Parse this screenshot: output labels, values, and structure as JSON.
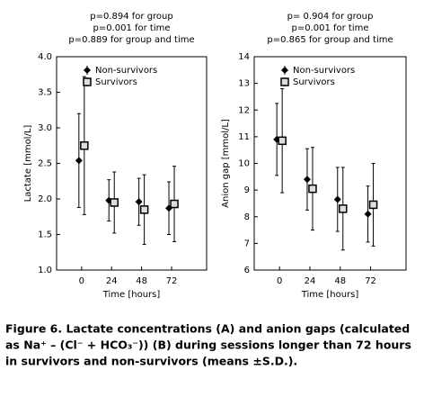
{
  "chart_data": [
    {
      "type": "errorbar",
      "annotations": [
        "p=0.894 for group",
        "p=0.001 for time",
        "p=0.889 for group and time"
      ],
      "x_label": "Time [hours]",
      "y_label": "Lactate [mmol/L]",
      "x": [
        0,
        24,
        48,
        72
      ],
      "xlim": [
        -20,
        100
      ],
      "xticks": [
        0,
        24,
        48,
        72
      ],
      "ylim": [
        1,
        4
      ],
      "yticks": [
        {
          "value": 1,
          "label": "1.0"
        },
        1.5,
        {
          "value": 2,
          "label": "2.0"
        },
        2.5,
        {
          "value": 3,
          "label": "3.0"
        },
        3.5,
        {
          "value": 4,
          "label": "4.0"
        }
      ],
      "legend": "upper left",
      "series": [
        {
          "name": "Non-survivors",
          "color": "#000000",
          "marker": "diamond",
          "values": [
            2.54,
            1.98,
            1.96,
            1.87
          ],
          "errors": [
            0.66,
            0.29,
            0.33,
            0.37
          ]
        },
        {
          "name": "Survivors",
          "color": "#000000",
          "marker": "square",
          "values": [
            2.75,
            1.95,
            1.85,
            1.93
          ],
          "errors": [
            0.97,
            0.43,
            0.49,
            0.53
          ]
        }
      ]
    },
    {
      "type": "errorbar",
      "annotations": [
        "p= 0.904 for group",
        "p=0.001 for time",
        "p=0.865 for group and time"
      ],
      "x_label": "Time [hours]",
      "y_label": "Anion gap [mmol/L]",
      "x": [
        0,
        24,
        48,
        72
      ],
      "xlim": [
        -20,
        100
      ],
      "xticks": [
        0,
        24,
        48,
        72
      ],
      "ylim": [
        6,
        14
      ],
      "yticks": [
        6,
        7,
        8,
        9,
        10,
        11,
        12,
        13,
        14
      ],
      "legend": "upper left",
      "series": [
        {
          "name": "Non-survivors",
          "color": "#000000",
          "marker": "diamond",
          "values": [
            10.9,
            9.4,
            8.65,
            8.1
          ],
          "errors": [
            1.35,
            1.15,
            1.2,
            1.05
          ]
        },
        {
          "name": "Survivors",
          "color": "#000000",
          "marker": "square",
          "values": [
            10.85,
            9.05,
            8.3,
            8.45
          ],
          "errors": [
            1.95,
            1.55,
            1.55,
            1.55
          ]
        }
      ]
    }
  ],
  "caption": [
    "Figure 6. Lactate concentrations (A) and anion gaps (calculated",
    "as Na⁺ – (Cl⁻ + HCO₃⁻)) (B) during sessions longer than 72 hours",
    "in survivors and non-survivors (means ±S.D.)."
  ]
}
